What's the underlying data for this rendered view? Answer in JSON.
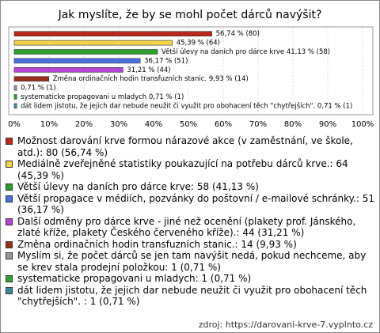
{
  "chart_data": {
    "type": "barh",
    "title": "Jak myslíte, že by se mohl počet dárců navýšit?",
    "categories": [
      "Možnost darování krve formou nárazové akce (v zaměstnání, ve škole, atd.): 80 (56,74 %)",
      "Mediálně zveřejněné statistiky poukazující na potřebu dárců krve.: 64 (45,39 %)",
      "Větší úlevy na daních pro dárce krve: 58 (41,13 %)",
      "Větší propagace v médiích, pozvánky do poštovní / e-mailové schránky.: 51 (36,17 %)",
      "Další odměny pro dárce krve - jiné než ocenění (plakety prof. Jánského, zlaté kříže, plakety Českého červeného kříže).: 44 (31,21 %)",
      "Změna ordinačních hodin transfuzních stanic.: 14 (9,93 %)",
      "Myslím si, že počet dárců se jen tam navýšit nedá, pokud nechceme, aby se krev stala prodejní položkou: 1 (0,71 %)",
      "systematicke propagovani u mladych: 1 (0,71 %)",
      "dát lidem jistotu, že jejich dar nebude neužit či využit pro obohacení těch \"chytřejších\". : 1 (0,71 %)"
    ],
    "values": [
      56.74,
      45.39,
      41.13,
      36.17,
      31.21,
      9.93,
      0.71,
      0.71,
      0.71
    ],
    "value_labels": [
      "56,74 % (80)",
      "45,39 % (64)",
      "Větší úlevy na daních pro dárce krve 41,13 % (58)",
      "36,17 % (51)",
      "31,21 % (44)",
      "Změna ordinačních hodin transfuzních stanic. 9,93 % (14)",
      "0,71 % (1)",
      "systematicke propagovani u mladych 0,71 % (1)",
      "dát lidem jistotu, že jejich dar nebude neužit či využit pro obohacení těch \"chytřejších\".  0,71 % (1)"
    ],
    "colors": [
      "#b8291c",
      "#f2d34a",
      "#2ca02c",
      "#4a6fe3",
      "#b444d4",
      "#9c2f1a",
      "#9a9a9a",
      "#33a033",
      "#3a8a9e"
    ],
    "xlim": [
      0,
      100
    ],
    "xticks": [
      {
        "value": 0,
        "label": "0%"
      },
      {
        "value": 10,
        "label": "10%"
      },
      {
        "value": 20,
        "label": "20%"
      },
      {
        "value": 30,
        "label": "30%"
      },
      {
        "value": 40,
        "label": "40%"
      },
      {
        "value": 50,
        "label": "50%"
      },
      {
        "value": 60,
        "label": "60%"
      },
      {
        "value": 70,
        "label": "70%"
      },
      {
        "value": 80,
        "label": "80%"
      },
      {
        "value": 90,
        "label": "90%"
      },
      {
        "value": 100,
        "label": "100%"
      }
    ],
    "grid": true,
    "source": "zdroj: https://darovani-krve-7.vyplnto.cz"
  }
}
